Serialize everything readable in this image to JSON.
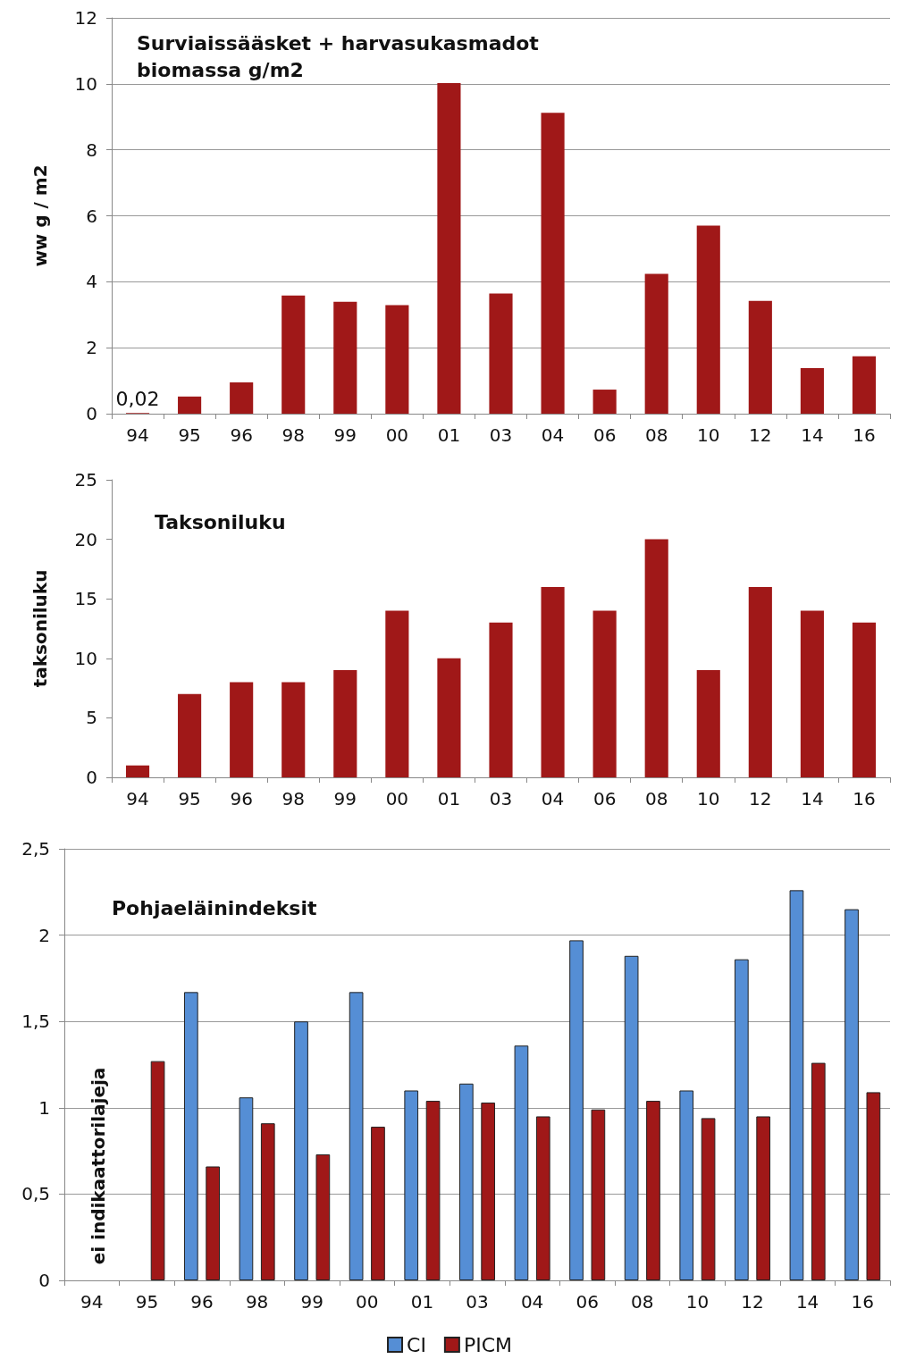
{
  "chart_data": [
    {
      "type": "bar",
      "title": "Surviaissääsket + harvasukasmadot\nbiomassa g/m2",
      "ylabel": "ww g / m2",
      "categories": [
        "94",
        "95",
        "96",
        "98",
        "99",
        "00",
        "01",
        "03",
        "04",
        "06",
        "08",
        "10",
        "12",
        "14",
        "16"
      ],
      "series": [
        {
          "color": "#a01818",
          "values": [
            0.02,
            0.52,
            0.95,
            3.58,
            3.39,
            3.29,
            10.02,
            3.64,
            9.12,
            0.73,
            4.24,
            5.7,
            3.42,
            1.38,
            1.74
          ],
          "value_labels": [
            "0,02",
            null,
            null,
            null,
            null,
            null,
            null,
            null,
            null,
            null,
            null,
            null,
            null,
            null,
            null
          ]
        }
      ],
      "ylim": [
        0,
        12
      ],
      "yticks": [
        0,
        2,
        4,
        6,
        8,
        10,
        12
      ],
      "grid": "y",
      "legend": false
    },
    {
      "type": "bar",
      "title": "Taksoniluku",
      "ylabel": "taksoniluku",
      "categories": [
        "94",
        "95",
        "96",
        "98",
        "99",
        "00",
        "01",
        "03",
        "04",
        "06",
        "08",
        "10",
        "12",
        "14",
        "16"
      ],
      "series": [
        {
          "color": "#a01818",
          "values": [
            1,
            7,
            8,
            8,
            9,
            14,
            10,
            13,
            16,
            14,
            20,
            9,
            16,
            14,
            13
          ]
        }
      ],
      "ylim": [
        0,
        25
      ],
      "yticks": [
        0,
        5,
        10,
        15,
        20,
        25
      ],
      "grid": false,
      "legend": false
    },
    {
      "type": "bar",
      "title": "Pohjaeläinindeksit",
      "categories": [
        "94",
        "95",
        "96",
        "98",
        "99",
        "00",
        "01",
        "03",
        "04",
        "06",
        "08",
        "10",
        "12",
        "14",
        "16"
      ],
      "series": [
        {
          "name": "CI",
          "color": "#558ed5",
          "values": [
            null,
            null,
            1.67,
            1.06,
            1.5,
            1.67,
            1.1,
            1.14,
            1.36,
            1.97,
            1.88,
            1.1,
            1.86,
            2.26,
            2.15
          ]
        },
        {
          "name": "PICM",
          "color": "#a01818",
          "values": [
            null,
            1.27,
            0.66,
            0.91,
            0.73,
            0.89,
            1.04,
            1.03,
            0.95,
            0.99,
            1.04,
            0.94,
            0.95,
            1.26,
            1.09
          ]
        }
      ],
      "ylim": [
        0,
        2.5
      ],
      "yticks": [
        0,
        {
          "value": 0.5,
          "label": "0,5"
        },
        1,
        {
          "value": 1.5,
          "label": "1,5"
        },
        2,
        {
          "value": 2.5,
          "label": "2,5"
        }
      ],
      "grid": "y",
      "legend": "bottom",
      "annotations": [
        "ei indikaattorilajeja"
      ]
    }
  ]
}
